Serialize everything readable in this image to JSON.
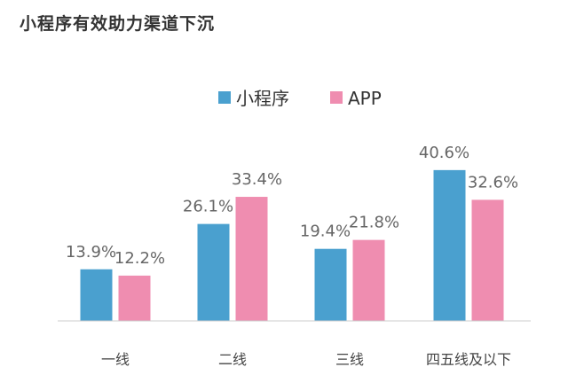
{
  "title": "小程序有效助力渠道下沉",
  "chart_data": {
    "type": "bar",
    "title": "小程序有效助力渠道下沉",
    "categories": [
      "一线",
      "二线",
      "三线",
      "四五线及以下"
    ],
    "series": [
      {
        "name": "小程序",
        "color": "#4aa0cf",
        "values": [
          13.9,
          26.1,
          19.4,
          40.6
        ]
      },
      {
        "name": "APP",
        "color": "#ef8db0",
        "values": [
          12.2,
          33.4,
          21.8,
          32.6
        ]
      }
    ],
    "ylim": [
      0,
      42
    ],
    "grid": false,
    "legend": "top-center",
    "value_suffix": "%"
  }
}
